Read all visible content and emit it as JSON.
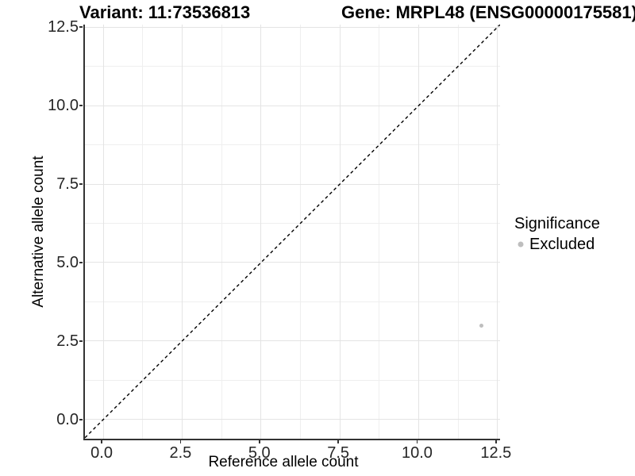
{
  "chart_data": {
    "type": "scatter",
    "title_left": "Variant: 11:73536813",
    "title_right": "Gene: MRPL48 (ENSG00000175581)",
    "xlabel": "Reference allele count",
    "ylabel": "Alternative allele count",
    "x_axis": {
      "ticks": [
        0.0,
        2.5,
        5.0,
        7.5,
        10.0,
        12.5
      ],
      "tick_labels": [
        "0.0",
        "2.5",
        "5.0",
        "7.5",
        "10.0",
        "12.5"
      ],
      "minor_ticks": [
        1.25,
        3.75,
        6.25,
        8.75,
        11.25
      ],
      "visible_range": [
        -0.58,
        12.58
      ]
    },
    "y_axis": {
      "ticks": [
        0.0,
        2.5,
        5.0,
        7.5,
        10.0,
        12.5
      ],
      "tick_labels": [
        "0.0",
        "2.5",
        "5.0",
        "7.5",
        "10.0",
        "12.5"
      ],
      "minor_ticks": [
        1.25,
        3.75,
        6.25,
        8.75,
        11.25
      ],
      "visible_range": [
        -0.61,
        12.58
      ]
    },
    "grid": true,
    "reference_line": {
      "kind": "identity",
      "slope": 1,
      "intercept": 0,
      "style": "dashed",
      "color": "#000000"
    },
    "series": [
      {
        "name": "Excluded",
        "color": "#bebebe",
        "points": [
          {
            "x": 12,
            "y": 3
          }
        ]
      }
    ],
    "legend": {
      "title": "Significance",
      "position": "right",
      "items": [
        {
          "label": "Excluded",
          "color": "#bebebe",
          "marker": "circle"
        }
      ]
    }
  },
  "colors": {
    "grid_major": "#e4e4e4",
    "grid_minor": "#efefef",
    "axis_line": "#333333",
    "tick_label": "#262626",
    "point": "#bebebe",
    "background": "#ffffff"
  }
}
